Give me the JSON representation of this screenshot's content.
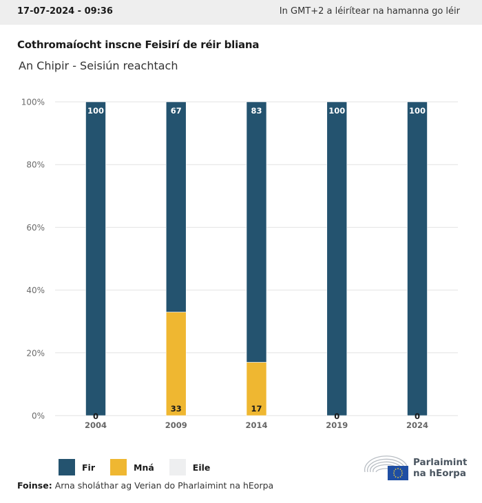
{
  "header": {
    "date": "17-07-2024 - 09:36",
    "timezone_note": "In GMT+2 a léirítear na hamanna go léir"
  },
  "title": "Cothromaíocht inscne Feisirí de réir bliana",
  "subtitle": "An Chipir - Seisiún reachtach",
  "colors": {
    "men": "#24536f",
    "women": "#efb731",
    "other": "#eeeff0",
    "grid": "#e2e2e2",
    "header_bg": "#eeeeee"
  },
  "legend": [
    {
      "label": "Fir",
      "color": "#24536f"
    },
    {
      "label": "Mná",
      "color": "#efb731"
    },
    {
      "label": "Eile",
      "color": "#eeeff0"
    }
  ],
  "source": {
    "label": "Foinse:",
    "text": "Arna sholáthar ag Verian do Pharlaimint na hEorpa"
  },
  "logo": {
    "line1": "Parlaimint",
    "line2": "na hEorpa"
  },
  "chart_data": {
    "type": "bar",
    "stacked": true,
    "title": "Cothromaíocht inscne Feisirí de réir bliana",
    "subtitle": "An Chipir - Seisiún reachtach",
    "xlabel": "",
    "ylabel": "",
    "categories": [
      "2004",
      "2009",
      "2014",
      "2019",
      "2024"
    ],
    "series": [
      {
        "name": "Mná",
        "color": "#efb731",
        "values": [
          0,
          33,
          17,
          0,
          0
        ]
      },
      {
        "name": "Fir",
        "color": "#24536f",
        "values": [
          100,
          67,
          83,
          100,
          100
        ]
      },
      {
        "name": "Eile",
        "color": "#eeeff0",
        "values": [
          0,
          0,
          0,
          0,
          0
        ]
      }
    ],
    "ylim": [
      0,
      100
    ],
    "yticks": [
      "0%",
      "20%",
      "40%",
      "60%",
      "80%",
      "100%"
    ],
    "grid": true,
    "legend_position": "bottom-left"
  }
}
